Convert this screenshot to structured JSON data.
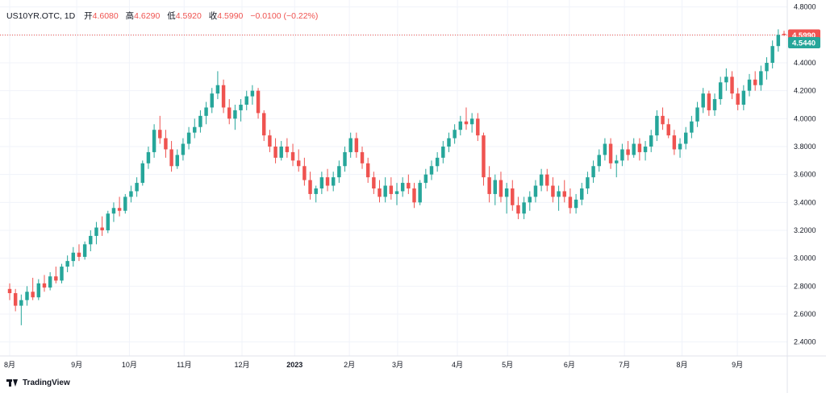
{
  "legend": {
    "symbol": "US10YR.OTC, 1D",
    "open_label": "开",
    "open": "4.6080",
    "high_label": "高",
    "high": "4.6290",
    "low_label": "低",
    "low": "4.5920",
    "close_label": "收",
    "close": "4.5990",
    "change": "−0.0100 (−0.22%)"
  },
  "price_tags": {
    "last": {
      "text": "4.5990",
      "value": 4.599,
      "color": "#ef5350"
    },
    "other": {
      "text": "4.5440",
      "value": 4.544,
      "color": "#26a69a"
    }
  },
  "footer": {
    "brand": "TradingView"
  },
  "colors": {
    "up": "#26a69a",
    "down": "#ef5350",
    "grid": "#f0f3fa",
    "axis_text": "#131722"
  },
  "chart_data": {
    "type": "candlestick",
    "title": "",
    "ylim": [
      2.3,
      4.85
    ],
    "y_ticks": [
      "4.8000",
      "4.6000",
      "4.4000",
      "4.2000",
      "4.0000",
      "3.8000",
      "3.6000",
      "3.4000",
      "3.2000",
      "3.0000",
      "2.8000",
      "2.6000",
      "2.4000"
    ],
    "x_ticks": [
      {
        "label": "8月",
        "pos": 0.0
      },
      {
        "label": "9月",
        "pos": 0.0866
      },
      {
        "label": "10月",
        "pos": 0.1546
      },
      {
        "label": "11月",
        "pos": 0.2253
      },
      {
        "label": "12月",
        "pos": 0.3
      },
      {
        "label": "2023",
        "pos": 0.368,
        "bold": true
      },
      {
        "label": "2月",
        "pos": 0.4387
      },
      {
        "label": "3月",
        "pos": 0.501
      },
      {
        "label": "4月",
        "pos": 0.5781
      },
      {
        "label": "5月",
        "pos": 0.6429
      },
      {
        "label": "6月",
        "pos": 0.7228
      },
      {
        "label": "7月",
        "pos": 0.7939
      },
      {
        "label": "8月",
        "pos": 0.8682
      },
      {
        "label": "9月",
        "pos": 0.9397
      }
    ],
    "grid": true,
    "series": [
      {
        "values": [
          [
            2.78,
            2.82,
            2.7,
            2.75
          ],
          [
            2.75,
            2.78,
            2.62,
            2.66
          ],
          [
            2.66,
            2.74,
            2.52,
            2.7
          ],
          [
            2.7,
            2.8,
            2.66,
            2.76
          ],
          [
            2.76,
            2.86,
            2.7,
            2.72
          ],
          [
            2.72,
            2.85,
            2.7,
            2.82
          ],
          [
            2.82,
            2.88,
            2.76,
            2.79
          ],
          [
            2.79,
            2.9,
            2.77,
            2.87
          ],
          [
            2.87,
            2.94,
            2.82,
            2.84
          ],
          [
            2.84,
            2.96,
            2.82,
            2.94
          ],
          [
            2.94,
            3.02,
            2.9,
            2.98
          ],
          [
            2.98,
            3.08,
            2.94,
            3.04
          ],
          [
            3.04,
            3.1,
            2.98,
            3.01
          ],
          [
            3.01,
            3.12,
            2.99,
            3.1
          ],
          [
            3.1,
            3.2,
            3.05,
            3.16
          ],
          [
            3.16,
            3.26,
            3.1,
            3.22
          ],
          [
            3.22,
            3.3,
            3.16,
            3.2
          ],
          [
            3.2,
            3.34,
            3.18,
            3.32
          ],
          [
            3.32,
            3.4,
            3.26,
            3.36
          ],
          [
            3.36,
            3.44,
            3.3,
            3.34
          ],
          [
            3.34,
            3.46,
            3.32,
            3.44
          ],
          [
            3.44,
            3.52,
            3.4,
            3.48
          ],
          [
            3.48,
            3.58,
            3.44,
            3.54
          ],
          [
            3.54,
            3.7,
            3.52,
            3.68
          ],
          [
            3.68,
            3.8,
            3.64,
            3.76
          ],
          [
            3.76,
            3.96,
            3.72,
            3.92
          ],
          [
            3.92,
            4.02,
            3.82,
            3.86
          ],
          [
            3.86,
            3.92,
            3.72,
            3.78
          ],
          [
            3.78,
            3.84,
            3.62,
            3.66
          ],
          [
            3.66,
            3.78,
            3.64,
            3.74
          ],
          [
            3.74,
            3.86,
            3.7,
            3.82
          ],
          [
            3.82,
            3.94,
            3.78,
            3.9
          ],
          [
            3.9,
            4.0,
            3.86,
            3.94
          ],
          [
            3.94,
            4.06,
            3.9,
            4.02
          ],
          [
            4.02,
            4.12,
            3.96,
            4.08
          ],
          [
            4.08,
            4.22,
            4.04,
            4.18
          ],
          [
            4.18,
            4.34,
            4.14,
            4.24
          ],
          [
            4.24,
            4.28,
            4.04,
            4.08
          ],
          [
            4.08,
            4.14,
            3.96,
            4.0
          ],
          [
            4.0,
            4.1,
            3.92,
            4.06
          ],
          [
            4.06,
            4.14,
            3.98,
            4.1
          ],
          [
            4.1,
            4.2,
            4.06,
            4.16
          ],
          [
            4.16,
            4.24,
            4.1,
            4.2
          ],
          [
            4.2,
            4.22,
            4.0,
            4.04
          ],
          [
            4.04,
            4.06,
            3.84,
            3.88
          ],
          [
            3.88,
            3.92,
            3.76,
            3.8
          ],
          [
            3.8,
            3.86,
            3.68,
            3.72
          ],
          [
            3.72,
            3.84,
            3.7,
            3.8
          ],
          [
            3.8,
            3.86,
            3.72,
            3.76
          ],
          [
            3.76,
            3.82,
            3.66,
            3.7
          ],
          [
            3.7,
            3.78,
            3.62,
            3.66
          ],
          [
            3.66,
            3.72,
            3.52,
            3.56
          ],
          [
            3.56,
            3.62,
            3.42,
            3.46
          ],
          [
            3.46,
            3.52,
            3.4,
            3.5
          ],
          [
            3.5,
            3.62,
            3.46,
            3.58
          ],
          [
            3.58,
            3.64,
            3.48,
            3.52
          ],
          [
            3.52,
            3.62,
            3.48,
            3.58
          ],
          [
            3.58,
            3.7,
            3.54,
            3.66
          ],
          [
            3.66,
            3.8,
            3.62,
            3.76
          ],
          [
            3.76,
            3.9,
            3.72,
            3.86
          ],
          [
            3.86,
            3.9,
            3.72,
            3.76
          ],
          [
            3.76,
            3.8,
            3.64,
            3.68
          ],
          [
            3.68,
            3.72,
            3.54,
            3.58
          ],
          [
            3.58,
            3.62,
            3.46,
            3.5
          ],
          [
            3.5,
            3.56,
            3.4,
            3.44
          ],
          [
            3.44,
            3.58,
            3.4,
            3.52
          ],
          [
            3.52,
            3.58,
            3.42,
            3.46
          ],
          [
            3.46,
            3.54,
            3.38,
            3.48
          ],
          [
            3.48,
            3.58,
            3.44,
            3.54
          ],
          [
            3.54,
            3.6,
            3.46,
            3.5
          ],
          [
            3.5,
            3.54,
            3.36,
            3.4
          ],
          [
            3.4,
            3.56,
            3.38,
            3.54
          ],
          [
            3.54,
            3.64,
            3.5,
            3.6
          ],
          [
            3.6,
            3.7,
            3.56,
            3.66
          ],
          [
            3.66,
            3.76,
            3.62,
            3.72
          ],
          [
            3.72,
            3.84,
            3.68,
            3.8
          ],
          [
            3.8,
            3.9,
            3.76,
            3.86
          ],
          [
            3.86,
            3.96,
            3.82,
            3.92
          ],
          [
            3.92,
            4.02,
            3.88,
            3.98
          ],
          [
            3.98,
            4.08,
            3.92,
            3.96
          ],
          [
            3.96,
            4.04,
            3.9,
            4.0
          ],
          [
            4.0,
            4.04,
            3.84,
            3.88
          ],
          [
            3.88,
            3.9,
            3.52,
            3.58
          ],
          [
            3.58,
            3.66,
            3.4,
            3.46
          ],
          [
            3.46,
            3.6,
            3.38,
            3.56
          ],
          [
            3.56,
            3.62,
            3.4,
            3.44
          ],
          [
            3.44,
            3.54,
            3.32,
            3.5
          ],
          [
            3.5,
            3.56,
            3.34,
            3.38
          ],
          [
            3.38,
            3.44,
            3.28,
            3.32
          ],
          [
            3.32,
            3.44,
            3.28,
            3.4
          ],
          [
            3.4,
            3.48,
            3.34,
            3.44
          ],
          [
            3.44,
            3.56,
            3.4,
            3.52
          ],
          [
            3.52,
            3.64,
            3.48,
            3.6
          ],
          [
            3.6,
            3.64,
            3.48,
            3.52
          ],
          [
            3.52,
            3.58,
            3.4,
            3.44
          ],
          [
            3.44,
            3.52,
            3.34,
            3.48
          ],
          [
            3.48,
            3.56,
            3.4,
            3.44
          ],
          [
            3.44,
            3.5,
            3.32,
            3.36
          ],
          [
            3.36,
            3.46,
            3.32,
            3.42
          ],
          [
            3.42,
            3.54,
            3.38,
            3.5
          ],
          [
            3.5,
            3.62,
            3.46,
            3.58
          ],
          [
            3.58,
            3.7,
            3.54,
            3.66
          ],
          [
            3.66,
            3.78,
            3.62,
            3.74
          ],
          [
            3.74,
            3.86,
            3.7,
            3.82
          ],
          [
            3.82,
            3.86,
            3.64,
            3.68
          ],
          [
            3.68,
            3.74,
            3.58,
            3.7
          ],
          [
            3.7,
            3.82,
            3.66,
            3.78
          ],
          [
            3.78,
            3.84,
            3.7,
            3.74
          ],
          [
            3.74,
            3.86,
            3.72,
            3.82
          ],
          [
            3.82,
            3.86,
            3.7,
            3.76
          ],
          [
            3.76,
            3.84,
            3.7,
            3.8
          ],
          [
            3.8,
            3.92,
            3.76,
            3.88
          ],
          [
            3.88,
            4.06,
            3.84,
            4.02
          ],
          [
            4.02,
            4.08,
            3.92,
            3.96
          ],
          [
            3.96,
            4.0,
            3.86,
            3.88
          ],
          [
            3.88,
            3.92,
            3.74,
            3.78
          ],
          [
            3.78,
            3.86,
            3.72,
            3.82
          ],
          [
            3.82,
            3.94,
            3.78,
            3.9
          ],
          [
            3.9,
            4.02,
            3.86,
            3.98
          ],
          [
            3.98,
            4.12,
            3.94,
            4.08
          ],
          [
            4.08,
            4.22,
            4.04,
            4.18
          ],
          [
            4.18,
            4.2,
            4.02,
            4.06
          ],
          [
            4.06,
            4.18,
            4.02,
            4.14
          ],
          [
            4.14,
            4.3,
            4.1,
            4.26
          ],
          [
            4.26,
            4.36,
            4.2,
            4.3
          ],
          [
            4.3,
            4.34,
            4.14,
            4.18
          ],
          [
            4.18,
            4.22,
            4.06,
            4.1
          ],
          [
            4.1,
            4.24,
            4.06,
            4.2
          ],
          [
            4.2,
            4.32,
            4.16,
            4.28
          ],
          [
            4.28,
            4.34,
            4.2,
            4.24
          ],
          [
            4.24,
            4.38,
            4.2,
            4.34
          ],
          [
            4.34,
            4.44,
            4.28,
            4.4
          ],
          [
            4.4,
            4.56,
            4.36,
            4.52
          ],
          [
            4.52,
            4.64,
            4.48,
            4.6
          ],
          [
            4.608,
            4.629,
            4.592,
            4.599
          ]
        ]
      }
    ]
  }
}
